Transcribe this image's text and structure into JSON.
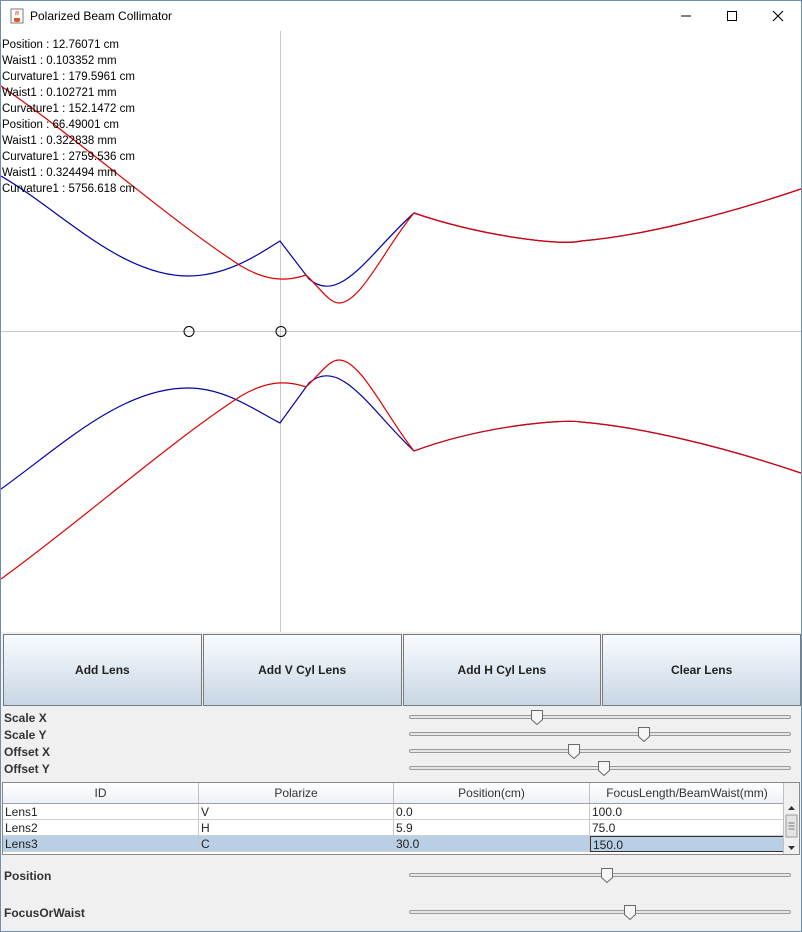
{
  "window": {
    "title": "Polarized Beam Collimator",
    "icon": "java-cup-icon"
  },
  "readout": [
    "Position : 12.76071 cm",
    "Waist1 : 0.103352 mm",
    "Curvature1 : 179.5961 cm",
    "Waist1 : 0.102721 mm",
    "Curvature1 : 152.1472 cm",
    "Position : 66.49001 cm",
    "Waist1 : 0.322838 mm",
    "Curvature1 : 2759.536 cm",
    "Waist1 : 0.324494 mm",
    "Curvature1 : 5756.618 cm"
  ],
  "plot": {
    "v_color": "#0000aa",
    "h_color": "#dd0000"
  },
  "buttons": {
    "add_lens": "Add Lens",
    "add_v_cyl": "Add V Cyl Lens",
    "add_h_cyl": "Add H Cyl Lens",
    "clear_lens": "Clear Lens"
  },
  "sliders": {
    "scale_x": {
      "label": "Scale X",
      "value": 0.33
    },
    "scale_y": {
      "label": "Scale Y",
      "value": 0.62
    },
    "offset_x": {
      "label": "Offset X",
      "value": 0.43
    },
    "offset_y": {
      "label": "Offset Y",
      "value": 0.51
    }
  },
  "table": {
    "columns": [
      "ID",
      "Polarize",
      "Position(cm)",
      "FocusLength/BeamWaist(mm)"
    ],
    "rows": [
      [
        "Lens1",
        "V",
        "0.0",
        "100.0"
      ],
      [
        "Lens2",
        "H",
        "5.9",
        "75.0"
      ],
      [
        "Lens3",
        "C",
        "30.0",
        "150.0"
      ]
    ],
    "selected_row": 2
  },
  "lower_sliders": {
    "position": {
      "label": "Position",
      "value": 0.52
    },
    "focus_or_waist": {
      "label": "FocusOrWaist",
      "value": 0.58
    }
  }
}
